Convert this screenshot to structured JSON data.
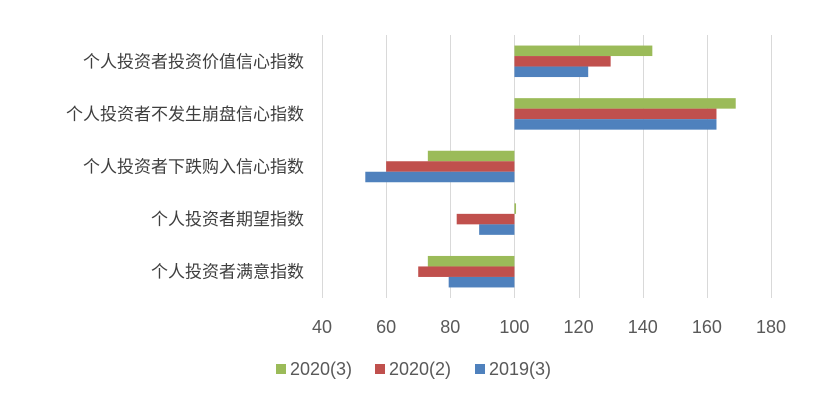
{
  "chart_data": {
    "type": "bar",
    "orientation": "horizontal",
    "title": "",
    "xlabel": "",
    "ylabel": "",
    "xlim": [
      40,
      180
    ],
    "x_ticks": [
      40,
      60,
      80,
      100,
      120,
      140,
      160,
      180
    ],
    "baseline": 100,
    "grid": true,
    "legend_position": "bottom",
    "categories": [
      "个人投资者投资价值信心指数",
      "个人投资者不发生崩盘信心指数",
      "个人投资者下跌购入信心指数",
      "个人投资者期望指数",
      "个人投资者满意指数"
    ],
    "series": [
      {
        "name": "2020(3)",
        "color": "#9bbb59",
        "values": [
          143,
          169,
          73,
          100.5,
          73
        ]
      },
      {
        "name": "2020(2)",
        "color": "#c0504d",
        "values": [
          130,
          163,
          60,
          82,
          70
        ]
      },
      {
        "name": "2019(3)",
        "color": "#4f81bd",
        "values": [
          123,
          163,
          53.5,
          89,
          79.5
        ]
      }
    ]
  }
}
